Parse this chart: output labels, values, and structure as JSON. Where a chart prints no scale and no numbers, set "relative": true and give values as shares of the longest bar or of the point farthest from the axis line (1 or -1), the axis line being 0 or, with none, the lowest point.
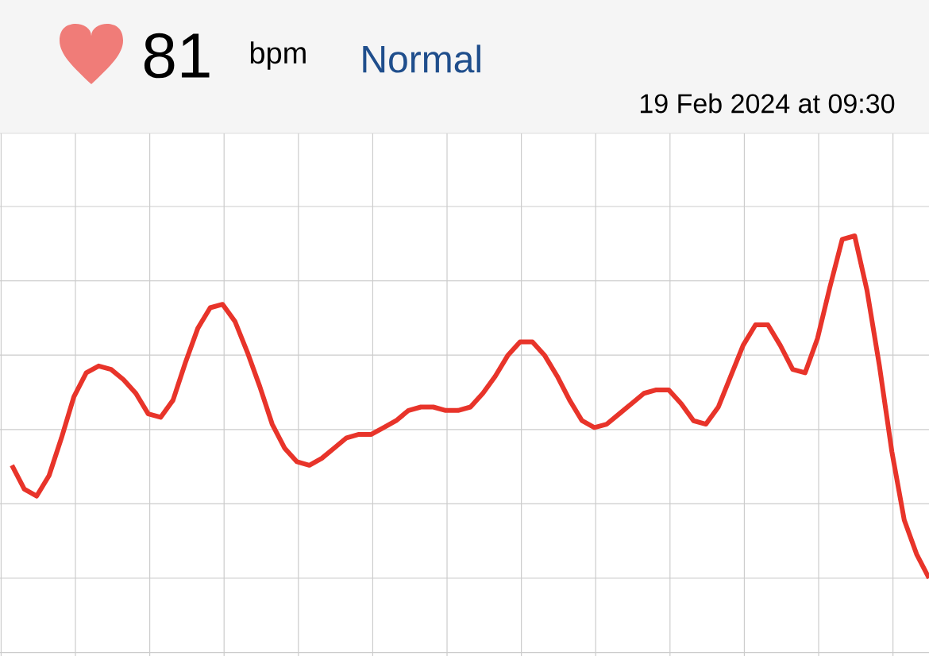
{
  "chart_data": {
    "type": "line",
    "relative": true,
    "grid": true,
    "categories": [
      null,
      null,
      null,
      null,
      null,
      null,
      null,
      null,
      null,
      null,
      null,
      null,
      null,
      null,
      null,
      null,
      null,
      null,
      null,
      null,
      null,
      null,
      null,
      null,
      null,
      null,
      null,
      null,
      null,
      null,
      null,
      null,
      null,
      null,
      null,
      null,
      null,
      null,
      null,
      null,
      null,
      null,
      null,
      null,
      null,
      null,
      null,
      null,
      null,
      null,
      null,
      null,
      null,
      null,
      null,
      null,
      null,
      null,
      null,
      null,
      null,
      null,
      null,
      null,
      null,
      null,
      null,
      null,
      null,
      null,
      null,
      null,
      null,
      null,
      null
    ],
    "series": [
      {
        "color": "#e8342a",
        "values": [
          0.33,
          0.26,
          0.24,
          0.3,
          0.41,
          0.53,
          0.6,
          0.62,
          0.61,
          0.58,
          0.54,
          0.48,
          0.47,
          0.52,
          0.63,
          0.73,
          0.79,
          0.8,
          0.75,
          0.66,
          0.56,
          0.45,
          0.38,
          0.34,
          0.33,
          0.35,
          0.38,
          0.41,
          0.42,
          0.42,
          0.44,
          0.46,
          0.49,
          0.5,
          0.5,
          0.49,
          0.49,
          0.5,
          0.54,
          0.59,
          0.65,
          0.69,
          0.69,
          0.65,
          0.59,
          0.52,
          0.46,
          0.44,
          0.45,
          0.48,
          0.51,
          0.54,
          0.55,
          0.55,
          0.51,
          0.46,
          0.45,
          0.5,
          0.59,
          0.68,
          0.74,
          0.74,
          0.68,
          0.61,
          0.6,
          0.7,
          0.85,
          0.99,
          1,
          0.84,
          0.62,
          0.37,
          0.17,
          0.07,
          0
        ]
      }
    ],
    "annotations": [
      "81",
      "bpm",
      "Normal",
      "19 Feb 2024 at 09:30"
    ]
  }
}
